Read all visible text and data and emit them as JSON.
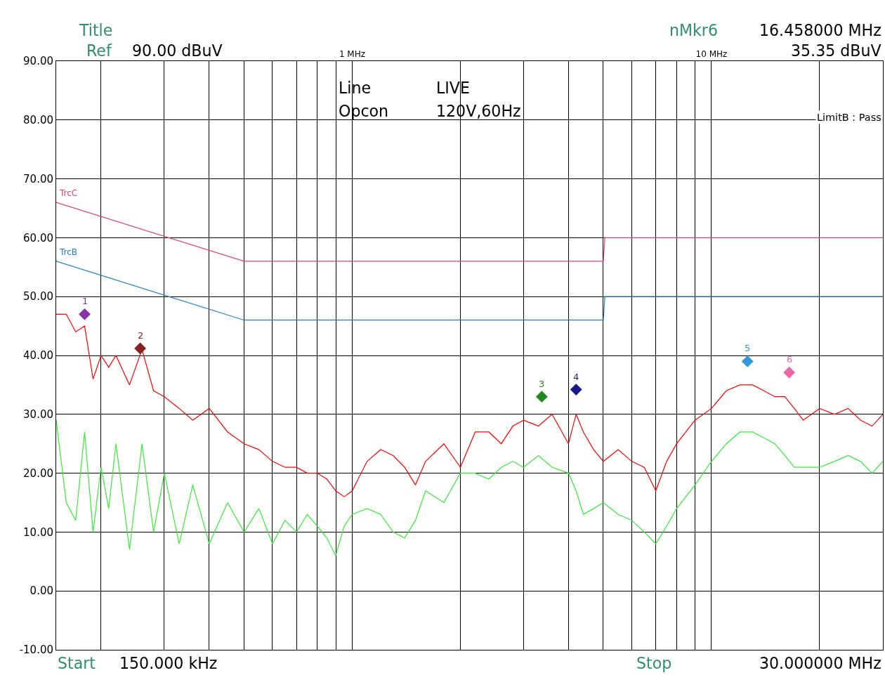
{
  "chart_data": {
    "type": "line",
    "annotations": [
      "Title",
      "Ref",
      "90.00 dBuV",
      "nMkr6",
      "16.458000 MHz",
      "35.35 dBuV",
      "Start",
      "150.000 kHz",
      "Stop",
      "30.000000 MHz",
      "Line",
      "LIVE",
      "Opcon",
      "120V,60Hz",
      "LimitB : Pass",
      {
        "text": "1",
        "x": 0.18,
        "y": 47.0
      },
      {
        "text": "2",
        "x": 0.257,
        "y": 41.2
      },
      {
        "text": "3",
        "x": 3.37,
        "y": 33.0
      },
      {
        "text": "4",
        "x": 4.2,
        "y": 34.2
      },
      {
        "text": "5",
        "x": 12.6,
        "y": 39.0
      },
      {
        "text": "6",
        "x": 16.458,
        "y": 37.1
      }
    ],
    "log": "x",
    "grid": true,
    "marker": "none",
    "line_style": "solid",
    "xlim": [
      0.15,
      30
    ],
    "xticks": [
      {
        "value": 0.2,
        "label": null
      },
      {
        "value": 0.3,
        "label": null
      },
      {
        "value": 0.4,
        "label": null
      },
      {
        "value": 0.5,
        "label": null
      },
      {
        "value": 0.6,
        "label": null
      },
      {
        "value": 0.7,
        "label": null
      },
      {
        "value": 0.8,
        "label": null
      },
      {
        "value": 0.9,
        "label": null
      },
      {
        "value": 1,
        "label": "1 MHz"
      },
      {
        "value": 2,
        "label": null
      },
      {
        "value": 3,
        "label": null
      },
      {
        "value": 4,
        "label": null
      },
      {
        "value": 5,
        "label": null
      },
      {
        "value": 6,
        "label": null
      },
      {
        "value": 7,
        "label": null
      },
      {
        "value": 8,
        "label": null
      },
      {
        "value": 9,
        "label": null
      },
      {
        "value": 10,
        "label": "10 MHz"
      },
      {
        "value": 20,
        "label": null
      }
    ],
    "ylim": [
      -10,
      90
    ],
    "yticks": [
      {
        "value": -10,
        "label": "-10.00"
      },
      {
        "value": 0,
        "label": "0.00"
      },
      {
        "value": 10,
        "label": "10.00"
      },
      {
        "value": 20,
        "label": "20.00"
      },
      {
        "value": 30,
        "label": "30.00"
      },
      {
        "value": 40,
        "label": "40.00"
      },
      {
        "value": 50,
        "label": "50.00"
      },
      {
        "value": 60,
        "label": "60.00"
      },
      {
        "value": 70,
        "label": "70.00"
      },
      {
        "value": 80,
        "label": "80.00"
      },
      {
        "value": 90,
        "label": "90.00"
      }
    ],
    "series": [
      {
        "name": "TrcC",
        "color": "#e0407a",
        "x": [
          0.15,
          0.5,
          5.0,
          5.05,
          30
        ],
        "values": [
          66,
          56,
          56,
          60,
          60
        ]
      },
      {
        "name": "TrcB",
        "color": "#2080d0",
        "x": [
          0.15,
          0.5,
          5.0,
          5.05,
          30
        ],
        "values": [
          56,
          46,
          46,
          50,
          50
        ]
      },
      {
        "color": "#ff0000",
        "x": [
          0.15,
          0.16,
          0.17,
          0.18,
          0.19,
          0.2,
          0.21,
          0.22,
          0.24,
          0.26,
          0.28,
          0.3,
          0.33,
          0.36,
          0.4,
          0.45,
          0.5,
          0.55,
          0.6,
          0.65,
          0.7,
          0.75,
          0.8,
          0.85,
          0.9,
          0.95,
          1.0,
          1.1,
          1.2,
          1.3,
          1.4,
          1.5,
          1.6,
          1.8,
          2.0,
          2.2,
          2.4,
          2.6,
          2.8,
          3.0,
          3.3,
          3.6,
          4.0,
          4.2,
          4.4,
          4.7,
          5.0,
          5.5,
          6.0,
          6.5,
          7.0,
          7.5,
          8.0,
          9,
          10,
          11,
          12,
          13,
          14,
          15,
          16,
          17,
          18,
          20,
          22,
          24,
          26,
          28,
          30
        ],
        "values": [
          47,
          47,
          44,
          45,
          36,
          40,
          38,
          40,
          35,
          41,
          34,
          33,
          31,
          29,
          31,
          27,
          25,
          24,
          22,
          21,
          21,
          20,
          20,
          19,
          17,
          16,
          17,
          22,
          24,
          23,
          21,
          18,
          22,
          25,
          21,
          27,
          27,
          25,
          28,
          29,
          28,
          30,
          25,
          30,
          27,
          24,
          22,
          24,
          22,
          21,
          17,
          22,
          25,
          29,
          31,
          34,
          35,
          35,
          34,
          33,
          33,
          31,
          29,
          31,
          30,
          31,
          29,
          28,
          30
        ]
      },
      {
        "color": "#33ee33",
        "x": [
          0.15,
          0.16,
          0.17,
          0.18,
          0.19,
          0.2,
          0.21,
          0.22,
          0.24,
          0.26,
          0.28,
          0.3,
          0.33,
          0.36,
          0.4,
          0.45,
          0.5,
          0.55,
          0.6,
          0.65,
          0.7,
          0.75,
          0.8,
          0.85,
          0.9,
          0.95,
          1.0,
          1.1,
          1.2,
          1.3,
          1.4,
          1.5,
          1.6,
          1.8,
          2.0,
          2.2,
          2.4,
          2.6,
          2.8,
          3.0,
          3.3,
          3.6,
          4.0,
          4.2,
          4.4,
          4.7,
          5.0,
          5.5,
          6.0,
          6.5,
          7.0,
          7.5,
          8.0,
          9,
          10,
          11,
          12,
          13,
          14,
          15,
          16,
          17,
          18,
          20,
          22,
          24,
          26,
          28,
          30
        ],
        "values": [
          29,
          15,
          12,
          27,
          10,
          21,
          14,
          25,
          7,
          25,
          10,
          20,
          8,
          18,
          8,
          15,
          10,
          14,
          8,
          12,
          10,
          13,
          11,
          9,
          6,
          11,
          13,
          14,
          13,
          10,
          9,
          12,
          17,
          15,
          20,
          20,
          19,
          21,
          22,
          21,
          23,
          21,
          20,
          17,
          13,
          14,
          15,
          13,
          12,
          10,
          8,
          11,
          14,
          18,
          22,
          25,
          27,
          27,
          26,
          25,
          23,
          21,
          21,
          21,
          22,
          23,
          22,
          20,
          22
        ]
      },
      {
        "type": "scatter",
        "marker": "diamond",
        "x": [
          0.18,
          0.257,
          3.37,
          4.2,
          12.6,
          16.458
        ],
        "values": [
          47.0,
          41.2,
          33.0,
          34.2,
          39.0,
          37.1
        ],
        "colors": [
          "#8833aa",
          "#882222",
          "#228822",
          "#1a1a8a",
          "#3399dd",
          "#ee66aa"
        ]
      }
    ]
  }
}
